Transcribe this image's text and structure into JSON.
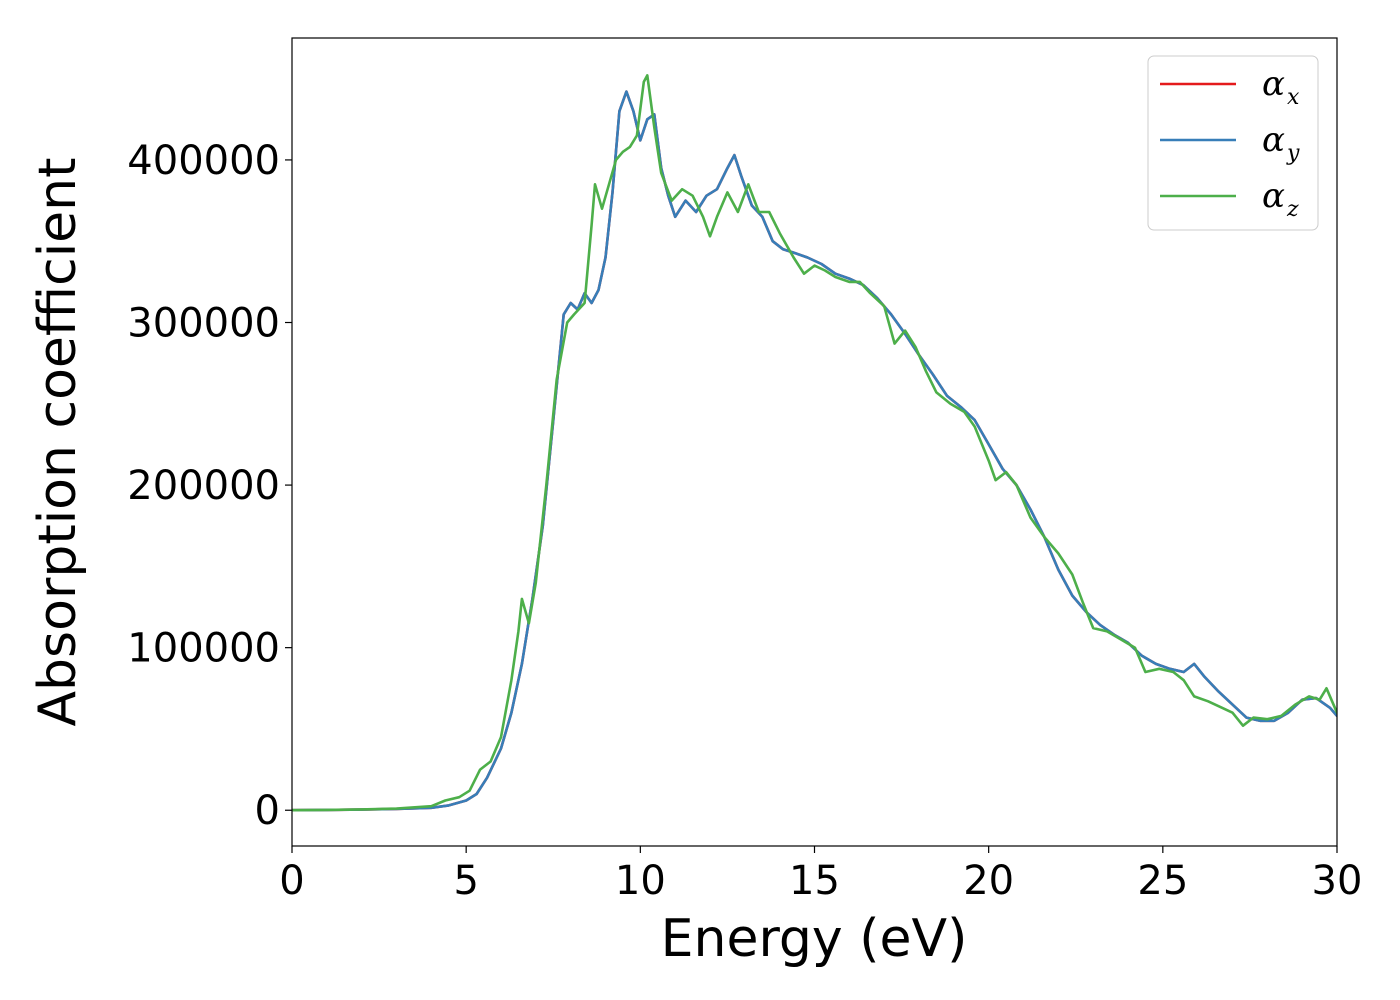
{
  "chart_data": {
    "type": "line",
    "xlabel": "Energy (eV)",
    "ylabel": "Absorption coefficient",
    "xlim": [
      0,
      30
    ],
    "ylim": [
      -22000,
      475000
    ],
    "xticks": [
      0,
      5,
      10,
      15,
      20,
      25,
      30
    ],
    "xtick_labels": [
      "0",
      "5",
      "10",
      "15",
      "20",
      "25",
      "30"
    ],
    "yticks": [
      0,
      100000,
      200000,
      300000,
      400000
    ],
    "ytick_labels": [
      "0",
      "100000",
      "200000",
      "300000",
      "400000"
    ],
    "grid": false,
    "legend_position": "top-right",
    "series": [
      {
        "name": "α_x",
        "legend_base": "α",
        "legend_sub": "x",
        "color": "#e41a1c",
        "points": [
          [
            0,
            0
          ],
          [
            1,
            200
          ],
          [
            2,
            400
          ],
          [
            3,
            800
          ],
          [
            4,
            1500
          ],
          [
            4.5,
            3000
          ],
          [
            5,
            6000
          ],
          [
            5.3,
            10000
          ],
          [
            5.6,
            20000
          ],
          [
            6,
            38000
          ],
          [
            6.3,
            60000
          ],
          [
            6.6,
            90000
          ],
          [
            6.9,
            130000
          ],
          [
            7.2,
            175000
          ],
          [
            7.5,
            240000
          ],
          [
            7.8,
            305000
          ],
          [
            8,
            312000
          ],
          [
            8.2,
            308000
          ],
          [
            8.4,
            318000
          ],
          [
            8.6,
            312000
          ],
          [
            8.8,
            320000
          ],
          [
            9,
            340000
          ],
          [
            9.2,
            380000
          ],
          [
            9.4,
            430000
          ],
          [
            9.6,
            442000
          ],
          [
            9.8,
            430000
          ],
          [
            10,
            412000
          ],
          [
            10.2,
            425000
          ],
          [
            10.4,
            428000
          ],
          [
            10.6,
            395000
          ],
          [
            10.8,
            378000
          ],
          [
            11,
            365000
          ],
          [
            11.3,
            375000
          ],
          [
            11.6,
            368000
          ],
          [
            11.9,
            378000
          ],
          [
            12.2,
            382000
          ],
          [
            12.5,
            395000
          ],
          [
            12.7,
            403000
          ],
          [
            12.9,
            390000
          ],
          [
            13.2,
            372000
          ],
          [
            13.5,
            365000
          ],
          [
            13.8,
            350000
          ],
          [
            14.1,
            345000
          ],
          [
            14.4,
            343000
          ],
          [
            14.8,
            340000
          ],
          [
            15.2,
            336000
          ],
          [
            15.6,
            330000
          ],
          [
            16,
            327000
          ],
          [
            16.4,
            323000
          ],
          [
            16.8,
            315000
          ],
          [
            17.2,
            305000
          ],
          [
            17.6,
            293000
          ],
          [
            18,
            280000
          ],
          [
            18.4,
            268000
          ],
          [
            18.8,
            255000
          ],
          [
            19.2,
            248000
          ],
          [
            19.6,
            240000
          ],
          [
            20,
            225000
          ],
          [
            20.4,
            210000
          ],
          [
            20.8,
            200000
          ],
          [
            21.2,
            185000
          ],
          [
            21.6,
            168000
          ],
          [
            22,
            148000
          ],
          [
            22.4,
            132000
          ],
          [
            22.8,
            122000
          ],
          [
            23.2,
            114000
          ],
          [
            23.6,
            108000
          ],
          [
            24,
            103000
          ],
          [
            24.4,
            95000
          ],
          [
            24.8,
            90000
          ],
          [
            25.2,
            87000
          ],
          [
            25.6,
            85000
          ],
          [
            25.9,
            90000
          ],
          [
            26.2,
            82000
          ],
          [
            26.6,
            73000
          ],
          [
            27,
            65000
          ],
          [
            27.4,
            57000
          ],
          [
            27.8,
            55000
          ],
          [
            28.2,
            55000
          ],
          [
            28.6,
            60000
          ],
          [
            29,
            68000
          ],
          [
            29.4,
            69000
          ],
          [
            29.8,
            63000
          ],
          [
            30,
            58000
          ]
        ]
      },
      {
        "name": "α_y",
        "legend_base": "α",
        "legend_sub": "y",
        "color": "#377eb8",
        "points": [
          [
            0,
            0
          ],
          [
            1,
            200
          ],
          [
            2,
            400
          ],
          [
            3,
            800
          ],
          [
            4,
            1500
          ],
          [
            4.5,
            3000
          ],
          [
            5,
            6000
          ],
          [
            5.3,
            10000
          ],
          [
            5.6,
            20000
          ],
          [
            6,
            38000
          ],
          [
            6.3,
            60000
          ],
          [
            6.6,
            90000
          ],
          [
            6.9,
            130000
          ],
          [
            7.2,
            175000
          ],
          [
            7.5,
            240000
          ],
          [
            7.8,
            305000
          ],
          [
            8,
            312000
          ],
          [
            8.2,
            308000
          ],
          [
            8.4,
            318000
          ],
          [
            8.6,
            312000
          ],
          [
            8.8,
            320000
          ],
          [
            9,
            340000
          ],
          [
            9.2,
            380000
          ],
          [
            9.4,
            430000
          ],
          [
            9.6,
            442000
          ],
          [
            9.8,
            430000
          ],
          [
            10,
            412000
          ],
          [
            10.2,
            425000
          ],
          [
            10.4,
            428000
          ],
          [
            10.6,
            395000
          ],
          [
            10.8,
            378000
          ],
          [
            11,
            365000
          ],
          [
            11.3,
            375000
          ],
          [
            11.6,
            368000
          ],
          [
            11.9,
            378000
          ],
          [
            12.2,
            382000
          ],
          [
            12.5,
            395000
          ],
          [
            12.7,
            403000
          ],
          [
            12.9,
            390000
          ],
          [
            13.2,
            372000
          ],
          [
            13.5,
            365000
          ],
          [
            13.8,
            350000
          ],
          [
            14.1,
            345000
          ],
          [
            14.4,
            343000
          ],
          [
            14.8,
            340000
          ],
          [
            15.2,
            336000
          ],
          [
            15.6,
            330000
          ],
          [
            16,
            327000
          ],
          [
            16.4,
            323000
          ],
          [
            16.8,
            315000
          ],
          [
            17.2,
            305000
          ],
          [
            17.6,
            293000
          ],
          [
            18,
            280000
          ],
          [
            18.4,
            268000
          ],
          [
            18.8,
            255000
          ],
          [
            19.2,
            248000
          ],
          [
            19.6,
            240000
          ],
          [
            20,
            225000
          ],
          [
            20.4,
            210000
          ],
          [
            20.8,
            200000
          ],
          [
            21.2,
            185000
          ],
          [
            21.6,
            168000
          ],
          [
            22,
            148000
          ],
          [
            22.4,
            132000
          ],
          [
            22.8,
            122000
          ],
          [
            23.2,
            114000
          ],
          [
            23.6,
            108000
          ],
          [
            24,
            103000
          ],
          [
            24.4,
            95000
          ],
          [
            24.8,
            90000
          ],
          [
            25.2,
            87000
          ],
          [
            25.6,
            85000
          ],
          [
            25.9,
            90000
          ],
          [
            26.2,
            82000
          ],
          [
            26.6,
            73000
          ],
          [
            27,
            65000
          ],
          [
            27.4,
            57000
          ],
          [
            27.8,
            55000
          ],
          [
            28.2,
            55000
          ],
          [
            28.6,
            60000
          ],
          [
            29,
            68000
          ],
          [
            29.4,
            69000
          ],
          [
            29.8,
            63000
          ],
          [
            30,
            58000
          ]
        ]
      },
      {
        "name": "α_z",
        "legend_base": "α",
        "legend_sub": "z",
        "color": "#4daf4a",
        "points": [
          [
            0,
            0
          ],
          [
            1,
            200
          ],
          [
            2,
            500
          ],
          [
            3,
            1000
          ],
          [
            4,
            2500
          ],
          [
            4.4,
            6000
          ],
          [
            4.8,
            8000
          ],
          [
            5.1,
            12000
          ],
          [
            5.4,
            25000
          ],
          [
            5.7,
            30000
          ],
          [
            6,
            45000
          ],
          [
            6.3,
            80000
          ],
          [
            6.5,
            110000
          ],
          [
            6.6,
            130000
          ],
          [
            6.8,
            115000
          ],
          [
            7,
            140000
          ],
          [
            7.3,
            200000
          ],
          [
            7.6,
            265000
          ],
          [
            7.9,
            300000
          ],
          [
            8.1,
            305000
          ],
          [
            8.4,
            312000
          ],
          [
            8.6,
            360000
          ],
          [
            8.7,
            385000
          ],
          [
            8.9,
            370000
          ],
          [
            9.1,
            385000
          ],
          [
            9.3,
            400000
          ],
          [
            9.5,
            405000
          ],
          [
            9.7,
            408000
          ],
          [
            9.9,
            415000
          ],
          [
            10.1,
            448000
          ],
          [
            10.2,
            452000
          ],
          [
            10.4,
            420000
          ],
          [
            10.6,
            392000
          ],
          [
            10.9,
            375000
          ],
          [
            11.2,
            382000
          ],
          [
            11.5,
            378000
          ],
          [
            11.8,
            365000
          ],
          [
            12,
            353000
          ],
          [
            12.2,
            365000
          ],
          [
            12.5,
            380000
          ],
          [
            12.8,
            368000
          ],
          [
            13.1,
            385000
          ],
          [
            13.4,
            368000
          ],
          [
            13.7,
            368000
          ],
          [
            14,
            355000
          ],
          [
            14.4,
            340000
          ],
          [
            14.7,
            330000
          ],
          [
            15,
            335000
          ],
          [
            15.3,
            332000
          ],
          [
            15.6,
            328000
          ],
          [
            16,
            325000
          ],
          [
            16.3,
            325000
          ],
          [
            16.6,
            318000
          ],
          [
            17,
            310000
          ],
          [
            17.3,
            287000
          ],
          [
            17.6,
            295000
          ],
          [
            17.9,
            285000
          ],
          [
            18.2,
            270000
          ],
          [
            18.5,
            257000
          ],
          [
            18.9,
            250000
          ],
          [
            19.3,
            245000
          ],
          [
            19.6,
            236000
          ],
          [
            20,
            215000
          ],
          [
            20.2,
            203000
          ],
          [
            20.5,
            208000
          ],
          [
            20.8,
            200000
          ],
          [
            21.2,
            180000
          ],
          [
            21.6,
            168000
          ],
          [
            22,
            158000
          ],
          [
            22.4,
            145000
          ],
          [
            22.7,
            128000
          ],
          [
            23,
            112000
          ],
          [
            23.4,
            110000
          ],
          [
            23.8,
            105000
          ],
          [
            24.2,
            100000
          ],
          [
            24.5,
            85000
          ],
          [
            24.9,
            87000
          ],
          [
            25.3,
            85000
          ],
          [
            25.6,
            80000
          ],
          [
            25.9,
            70000
          ],
          [
            26.3,
            67000
          ],
          [
            26.7,
            63000
          ],
          [
            27,
            60000
          ],
          [
            27.3,
            52000
          ],
          [
            27.6,
            57000
          ],
          [
            28,
            56000
          ],
          [
            28.4,
            58000
          ],
          [
            28.8,
            65000
          ],
          [
            29.2,
            70000
          ],
          [
            29.5,
            68000
          ],
          [
            29.7,
            75000
          ],
          [
            30,
            60000
          ]
        ]
      }
    ]
  }
}
